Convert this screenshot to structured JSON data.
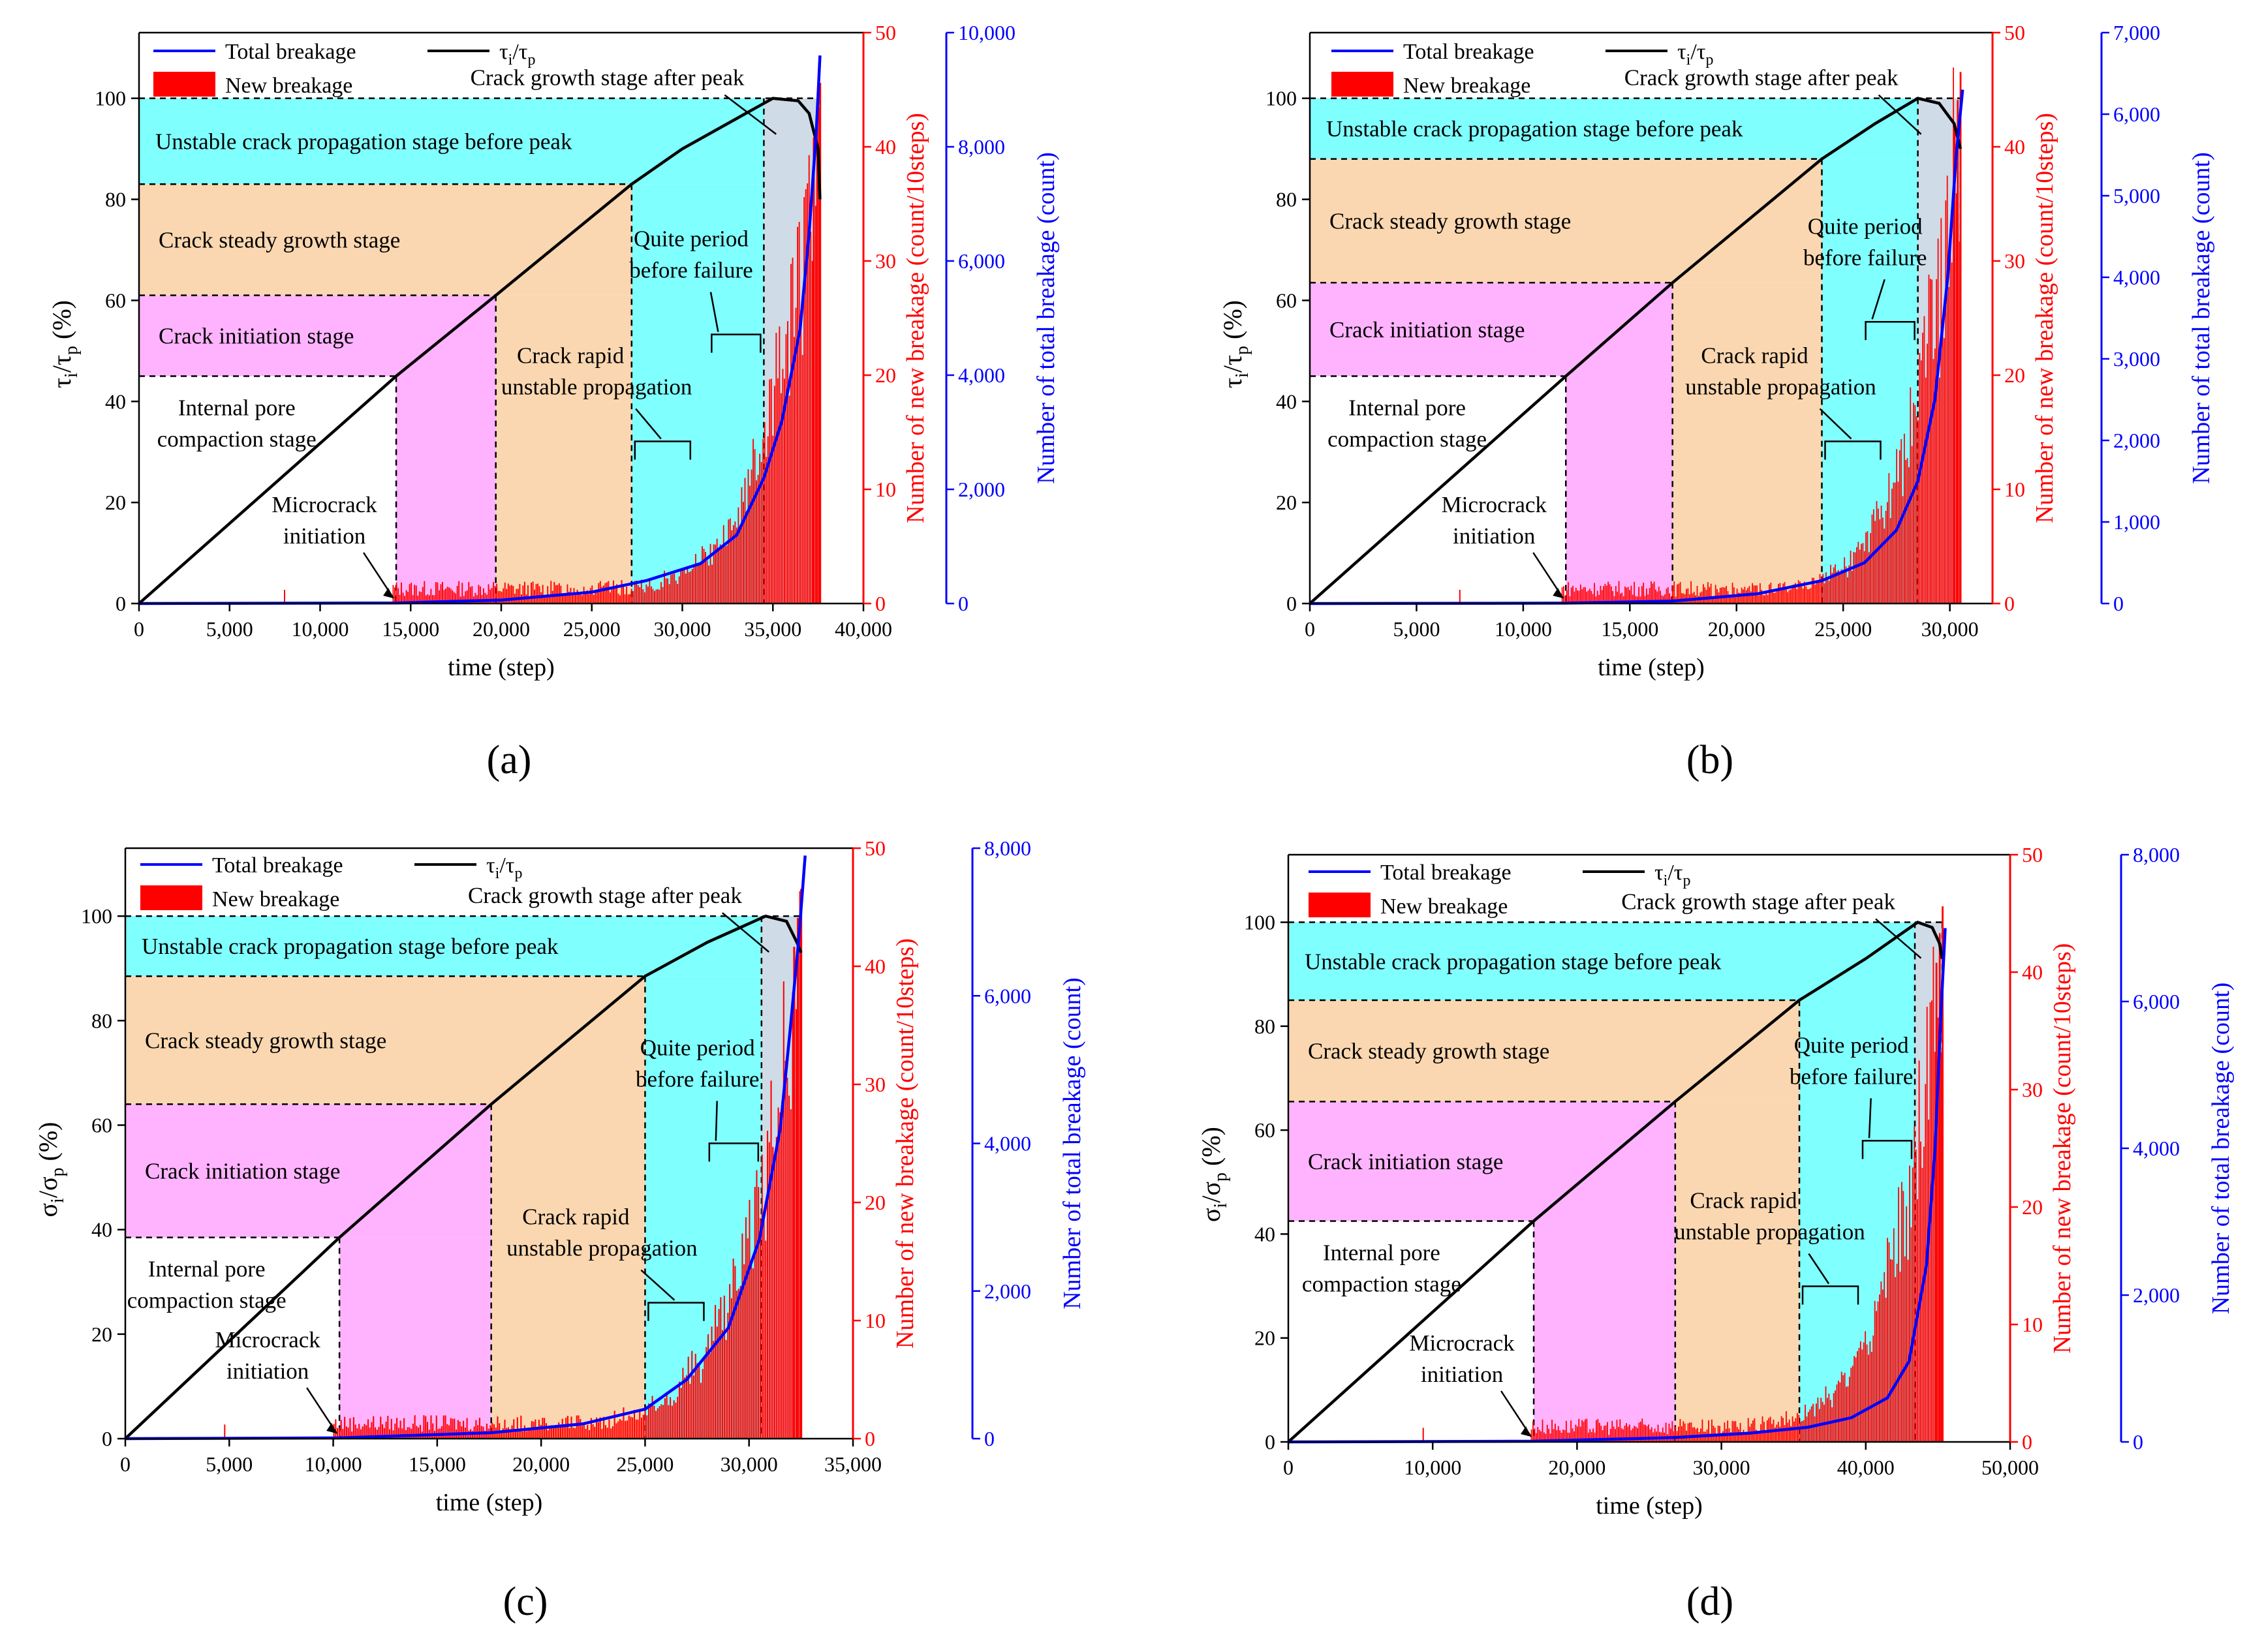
{
  "figure": {
    "panel_letters": [
      "(a)",
      "(b)",
      "(c)",
      "(d)"
    ]
  },
  "colors": {
    "unstable": "#80ffff",
    "steady": "#fad7b0",
    "initiation": "#ffb3ff",
    "postpeak": "#cfdbe6",
    "new_breakage": "#ff0000",
    "total_breakage": "#0000ff",
    "stress": "#000000"
  },
  "chart_data": [
    {
      "type": "bar+line",
      "panel": "(a)",
      "xlabel": "time (step)",
      "ylabel_left_main": "τ",
      "ylabel_left_sub1": "i",
      "ylabel_left_slash": "/τ",
      "ylabel_left_sub2": "p",
      "ylabel_left_suffix": " (%)",
      "ylabel_red": "Number of new breakage (count/10steps)",
      "ylabel_blue": "Number of total breakage (count)",
      "xlim": [
        0,
        40000
      ],
      "xticks": [
        0,
        5000,
        10000,
        15000,
        20000,
        25000,
        30000,
        35000,
        40000
      ],
      "xtick_labels": [
        "0",
        "5,000",
        "10,000",
        "15,000",
        "20,000",
        "25,000",
        "30,000",
        "35,000",
        "40,000"
      ],
      "ylim_left": [
        0,
        113
      ],
      "yticks_left": [
        0,
        20,
        40,
        60,
        80,
        100
      ],
      "ylim_red": [
        0,
        50
      ],
      "yticks_red": [
        0,
        10,
        20,
        30,
        40,
        50
      ],
      "ylim_blue": [
        0,
        10000
      ],
      "yticks_blue": [
        0,
        2000,
        4000,
        6000,
        8000,
        10000
      ],
      "ytick_labels_blue": [
        "0",
        "2,000",
        "4,000",
        "6,000",
        "8,000",
        "10,000"
      ],
      "legend": {
        "total": "Total breakage",
        "stress_main": "τ",
        "stress_sub1": "i",
        "stress_slash": "/τ",
        "stress_sub2": "p",
        "new": "New breakage"
      },
      "stage_bounds": {
        "t_init": 14200,
        "t_steady": 19700,
        "t_unstable": 27200,
        "t_quiet": 34500,
        "t_peak": 35000,
        "t_end": 37600
      },
      "stage_levels": {
        "compaction_top": 45,
        "initiation_top": 61,
        "steady_top": 83,
        "unstable_top": 100
      },
      "stage_labels": {
        "unstable": "Unstable crack propagation stage before peak",
        "steady": "Crack steady growth stage",
        "initiation": "Crack initiation stage",
        "compaction_1": "Internal pore",
        "compaction_2": "compaction stage",
        "after_peak": "Crack growth stage after peak",
        "rapid_1": "Crack rapid",
        "rapid_2": "unstable propagation",
        "quiet_1": "Quite period",
        "quiet_2": "before failure",
        "micro_1": "Microcrack",
        "micro_2": "initiation"
      },
      "stress_curve": {
        "t": [
          0,
          14200,
          19700,
          27200,
          30000,
          33000,
          35000,
          36400,
          37000,
          37500,
          37600
        ],
        "v": [
          0,
          45,
          61,
          83,
          90,
          96,
          100,
          99.5,
          97,
          90,
          80
        ]
      },
      "total_curve": {
        "t": [
          0,
          14200,
          20000,
          25000,
          28000,
          31000,
          33000,
          34500,
          35500,
          36500,
          37000,
          37400,
          37600
        ],
        "v": [
          0,
          10,
          60,
          200,
          400,
          700,
          1200,
          2200,
          3200,
          4800,
          6500,
          8300,
          9600
        ]
      },
      "new_breakage": {
        "onset": 14000,
        "peak_value": 48
      }
    },
    {
      "type": "bar+line",
      "panel": "(b)",
      "xlabel": "time (step)",
      "ylabel_left_main": "τ",
      "ylabel_left_sub1": "i",
      "ylabel_left_slash": "/τ",
      "ylabel_left_sub2": "p",
      "ylabel_left_suffix": " (%)",
      "ylabel_red": "Number of new breakage (count/10steps)",
      "ylabel_blue": "Number of total breakage (count)",
      "xlim": [
        0,
        32000
      ],
      "xticks": [
        0,
        5000,
        10000,
        15000,
        20000,
        25000,
        30000
      ],
      "xtick_labels": [
        "0",
        "5,000",
        "10,000",
        "15,000",
        "20,000",
        "25,000",
        "30,000"
      ],
      "ylim_left": [
        0,
        113
      ],
      "yticks_left": [
        0,
        20,
        40,
        60,
        80,
        100
      ],
      "ylim_red": [
        0,
        50
      ],
      "yticks_red": [
        0,
        10,
        20,
        30,
        40,
        50
      ],
      "ylim_blue": [
        0,
        7000
      ],
      "yticks_blue": [
        0,
        1000,
        2000,
        3000,
        4000,
        5000,
        6000,
        7000
      ],
      "ytick_labels_blue": [
        "0",
        "1,000",
        "2,000",
        "3,000",
        "4,000",
        "5,000",
        "6,000",
        "7,000"
      ],
      "legend": {
        "total": "Total breakage",
        "stress_main": "τ",
        "stress_sub1": "i",
        "stress_slash": "/τ",
        "stress_sub2": "p",
        "new": "New breakage"
      },
      "stage_bounds": {
        "t_init": 12000,
        "t_steady": 17000,
        "t_unstable": 24000,
        "t_quiet": 28500,
        "t_peak": 28500,
        "t_end": 30500
      },
      "stage_levels": {
        "compaction_top": 45,
        "initiation_top": 63.5,
        "steady_top": 88,
        "unstable_top": 100
      },
      "stage_labels": {
        "unstable": "Unstable crack propagation stage before peak",
        "steady": "Crack steady growth stage",
        "initiation": "Crack initiation stage",
        "compaction_1": "Internal pore",
        "compaction_2": "compaction stage",
        "after_peak": "Crack growth stage after peak",
        "rapid_1": "Crack rapid",
        "rapid_2": "unstable propagation",
        "quiet_1": "Quite period",
        "quiet_2": "before failure",
        "micro_1": "Microcrack",
        "micro_2": "initiation"
      },
      "stress_curve": {
        "t": [
          0,
          12000,
          17000,
          24000,
          26500,
          28500,
          29500,
          30200,
          30500
        ],
        "v": [
          0,
          45,
          63.5,
          88,
          95,
          100,
          99,
          95,
          90
        ]
      },
      "total_curve": {
        "t": [
          0,
          12000,
          17000,
          21000,
          24000,
          26000,
          27500,
          28500,
          29300,
          29900,
          30300,
          30600
        ],
        "v": [
          0,
          5,
          30,
          120,
          280,
          500,
          900,
          1500,
          2500,
          4000,
          5500,
          6300
        ]
      },
      "new_breakage": {
        "onset": 11800,
        "peak_value": 49
      }
    },
    {
      "type": "bar+line",
      "panel": "(c)",
      "xlabel": "time (step)",
      "ylabel_left_main": "σ",
      "ylabel_left_sub1": "i",
      "ylabel_left_slash": "/σ",
      "ylabel_left_sub2": "p",
      "ylabel_left_suffix": " (%)",
      "ylabel_red": "Number of new breakage (count/10steps)",
      "ylabel_blue": "Number of total breakage (count)",
      "xlim": [
        0,
        35000
      ],
      "xticks": [
        0,
        5000,
        10000,
        15000,
        20000,
        25000,
        30000,
        35000
      ],
      "xtick_labels": [
        "0",
        "5,000",
        "10,000",
        "15,000",
        "20,000",
        "25,000",
        "30,000",
        "35,000"
      ],
      "ylim_left": [
        0,
        113
      ],
      "yticks_left": [
        0,
        20,
        40,
        60,
        80,
        100
      ],
      "ylim_red": [
        0,
        50
      ],
      "yticks_red": [
        0,
        10,
        20,
        30,
        40,
        50
      ],
      "ylim_blue": [
        0,
        8000
      ],
      "yticks_blue": [
        0,
        2000,
        4000,
        6000,
        8000
      ],
      "ytick_labels_blue": [
        "0",
        "2,000",
        "4,000",
        "6,000",
        "8,000"
      ],
      "legend": {
        "total": "Total breakage",
        "stress_main": "τ",
        "stress_sub1": "i",
        "stress_slash": "/τ",
        "stress_sub2": "p",
        "new": "New breakage"
      },
      "stage_bounds": {
        "t_init": 10300,
        "t_steady": 17600,
        "t_unstable": 25000,
        "t_quiet": 30600,
        "t_peak": 30800,
        "t_end": 32500
      },
      "stage_levels": {
        "compaction_top": 38.5,
        "initiation_top": 64,
        "steady_top": 88.5,
        "unstable_top": 100
      },
      "stage_labels": {
        "unstable": "Unstable crack propagation stage before peak",
        "steady": "Crack steady growth stage",
        "initiation": "Crack initiation stage",
        "compaction_1": "Internal pore",
        "compaction_2": "compaction stage",
        "after_peak": "Crack growth stage after peak",
        "rapid_1": "Crack rapid",
        "rapid_2": "unstable propagation",
        "quiet_1": "Quite period",
        "quiet_2": "before failure",
        "micro_1": "Microcrack",
        "micro_2": "initiation"
      },
      "stress_curve": {
        "t": [
          0,
          10300,
          17600,
          25000,
          28000,
          30800,
          31800,
          32300,
          32500
        ],
        "v": [
          0,
          38.5,
          64,
          88.5,
          95,
          100,
          99,
          95,
          93
        ]
      },
      "total_curve": {
        "t": [
          0,
          10300,
          17600,
          22000,
          25000,
          27000,
          29000,
          30500,
          31500,
          32000,
          32400,
          32700
        ],
        "v": [
          0,
          10,
          80,
          200,
          400,
          800,
          1500,
          2700,
          4200,
          5600,
          6800,
          7900
        ]
      },
      "new_breakage": {
        "onset": 10000,
        "peak_value": 49
      }
    },
    {
      "type": "bar+line",
      "panel": "(d)",
      "xlabel": "time (step)",
      "ylabel_left_main": "σ",
      "ylabel_left_sub1": "i",
      "ylabel_left_slash": "/σ",
      "ylabel_left_sub2": "p",
      "ylabel_left_suffix": " (%)",
      "ylabel_red": "Number of new breakage (count/10steps)",
      "ylabel_blue": "Number of total breakage (count)",
      "xlim": [
        0,
        50000
      ],
      "xticks": [
        0,
        10000,
        20000,
        30000,
        40000,
        50000
      ],
      "xtick_labels": [
        "0",
        "10,000",
        "20,000",
        "30,000",
        "40,000",
        "50,000"
      ],
      "ylim_left": [
        0,
        113
      ],
      "yticks_left": [
        0,
        20,
        40,
        60,
        80,
        100
      ],
      "ylim_red": [
        0,
        50
      ],
      "yticks_red": [
        0,
        10,
        20,
        30,
        40,
        50
      ],
      "ylim_blue": [
        0,
        8000
      ],
      "yticks_blue": [
        0,
        2000,
        4000,
        6000,
        8000
      ],
      "ytick_labels_blue": [
        "0",
        "2,000",
        "4,000",
        "6,000",
        "8,000"
      ],
      "legend": {
        "total": "Total breakage",
        "stress_main": "τ",
        "stress_sub1": "i",
        "stress_slash": "/τ",
        "stress_sub2": "p",
        "new": "New breakage"
      },
      "stage_bounds": {
        "t_init": 17000,
        "t_steady": 26800,
        "t_unstable": 35400,
        "t_quiet": 43400,
        "t_peak": 43600,
        "t_end": 45300
      },
      "stage_levels": {
        "compaction_top": 42.5,
        "initiation_top": 65.5,
        "steady_top": 85,
        "unstable_top": 100
      },
      "stage_labels": {
        "unstable": "Unstable crack propagation stage before peak",
        "steady": "Crack steady growth stage",
        "initiation": "Crack initiation stage",
        "compaction_1": "Internal pore",
        "compaction_2": "compaction stage",
        "after_peak": "Crack growth stage after peak",
        "rapid_1": "Crack rapid",
        "rapid_2": "unstable propagation",
        "quiet_1": "Quite period",
        "quiet_2": "before failure",
        "micro_1": "Microcrack",
        "micro_2": "initiation"
      },
      "stress_curve": {
        "t": [
          0,
          17000,
          26800,
          35400,
          40000,
          43600,
          44600,
          45100,
          45300
        ],
        "v": [
          0,
          42.5,
          65.5,
          85,
          93,
          100,
          99,
          96,
          93
        ]
      },
      "total_curve": {
        "t": [
          0,
          17000,
          26800,
          32000,
          36000,
          39000,
          41500,
          43000,
          44200,
          44800,
          45200,
          45500
        ],
        "v": [
          0,
          10,
          60,
          120,
          200,
          330,
          600,
          1100,
          2400,
          4000,
          5800,
          7000
        ]
      },
      "new_breakage": {
        "onset": 16800,
        "peak_value": 48
      }
    }
  ]
}
